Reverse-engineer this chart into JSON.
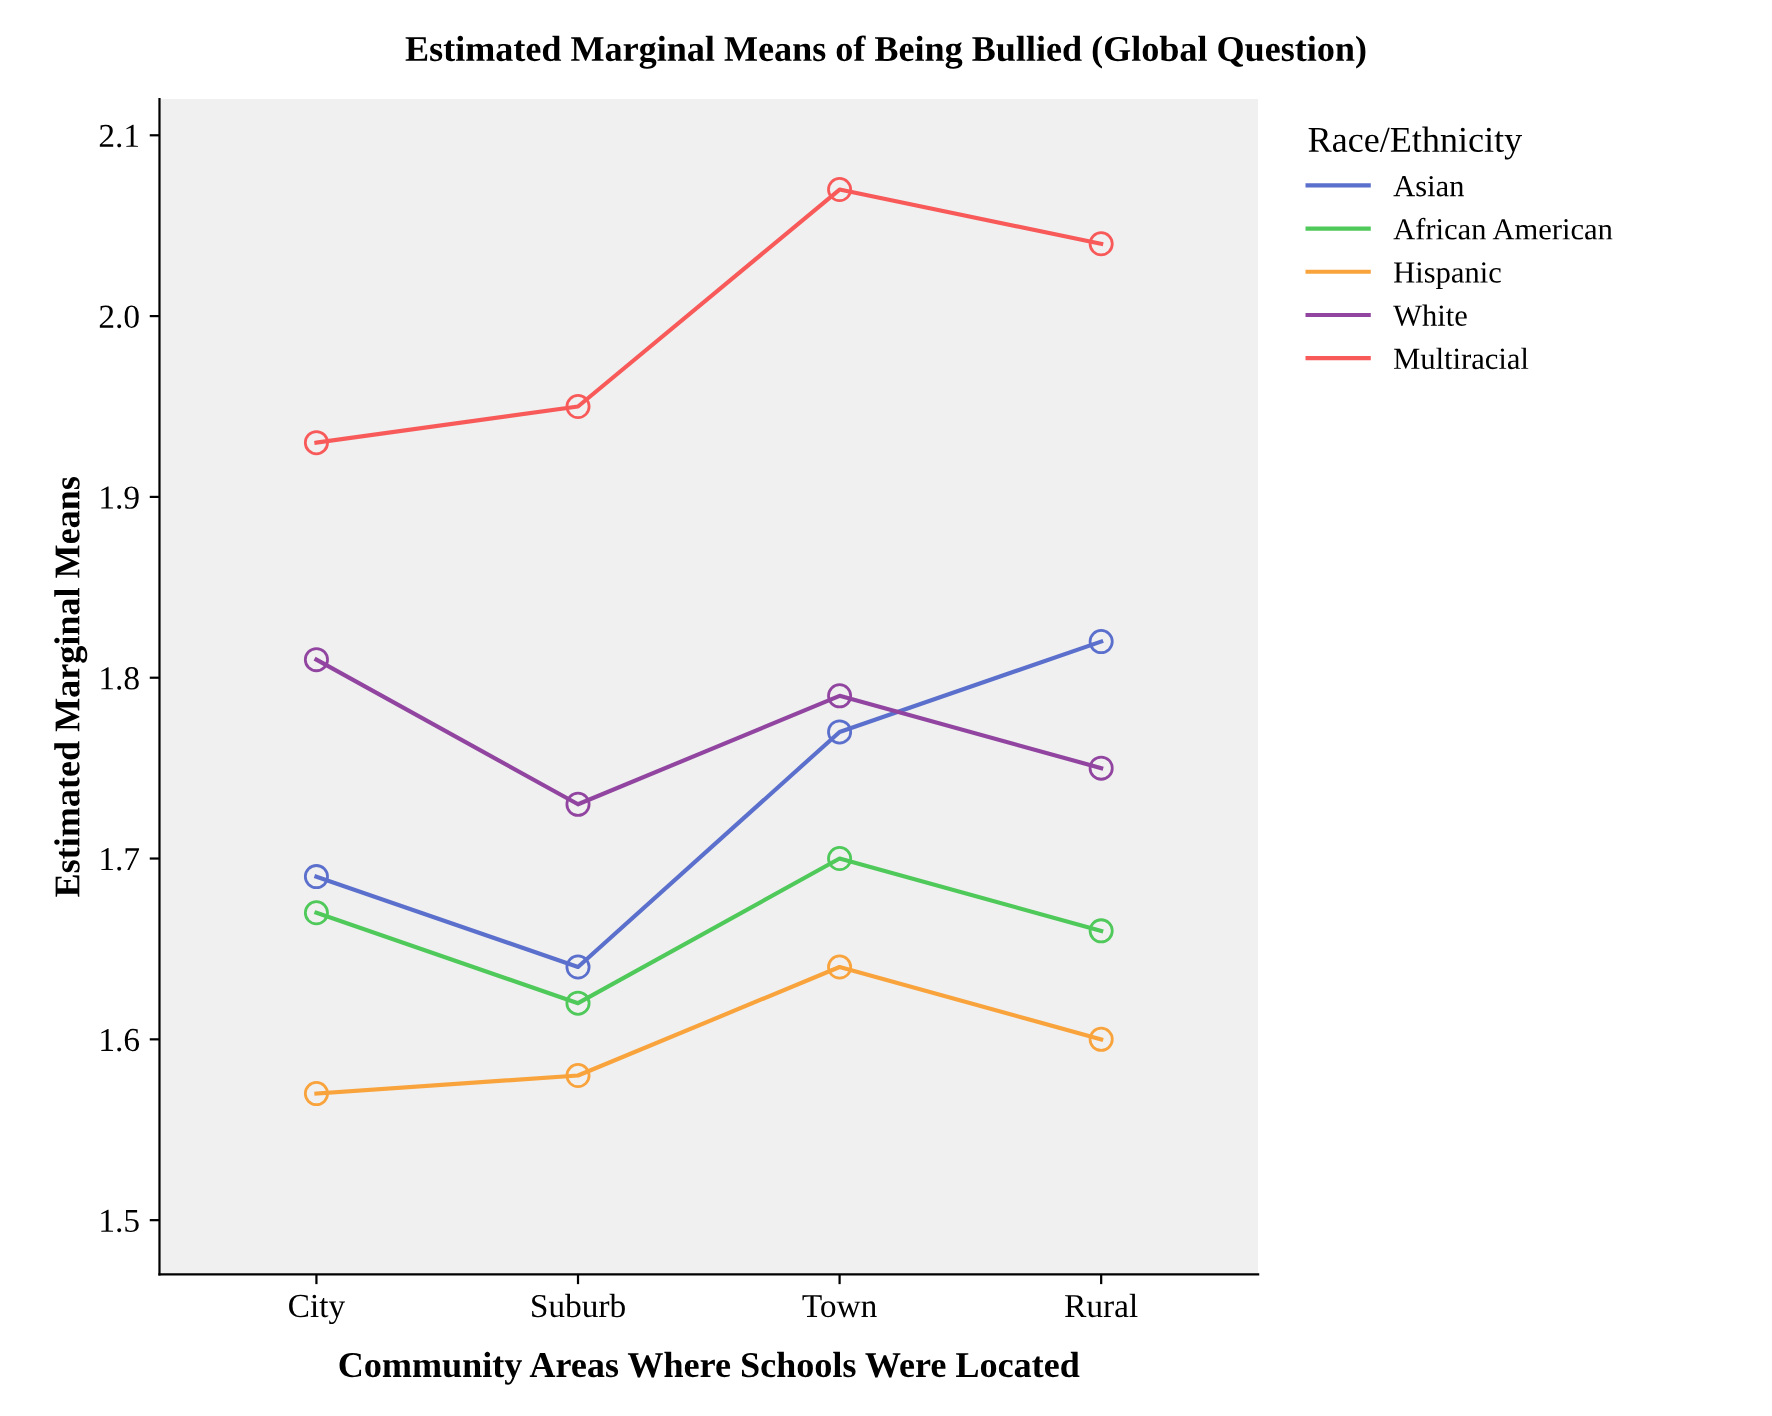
{
  "chart_data": {
    "type": "line",
    "title": "Estimated Marginal Means of Being Bullied (Global Question)",
    "xlabel": "Community Areas Where Schools Were Located",
    "ylabel": "Estimated Marginal Means",
    "legend_title": "Race/Ethnicity",
    "categories": [
      "City",
      "Suburb",
      "Town",
      "Rural"
    ],
    "series": [
      {
        "name": "Asian",
        "color": "#5b6fcc",
        "values": [
          1.69,
          1.64,
          1.77,
          1.82
        ]
      },
      {
        "name": "African American",
        "color": "#4fc95a",
        "values": [
          1.67,
          1.62,
          1.7,
          1.66
        ]
      },
      {
        "name": "Hispanic",
        "color": "#f9a33c",
        "values": [
          1.57,
          1.58,
          1.64,
          1.6
        ]
      },
      {
        "name": "White",
        "color": "#9145a0",
        "values": [
          1.81,
          1.73,
          1.79,
          1.75
        ]
      },
      {
        "name": "Multiracial",
        "color": "#f85a5a",
        "values": [
          1.93,
          1.95,
          2.07,
          2.04
        ]
      }
    ],
    "ylim": [
      1.47,
      2.12
    ],
    "yticks": [
      {
        "value": 1.5,
        "label": "1.5"
      },
      {
        "value": 1.6,
        "label": "1.6"
      },
      {
        "value": 1.7,
        "label": "1.7"
      },
      {
        "value": 1.8,
        "label": "1.8"
      },
      {
        "value": 1.9,
        "label": "1.9"
      },
      {
        "value": 2.0,
        "label": "2.0"
      },
      {
        "value": 2.1,
        "label": "2.1"
      }
    ],
    "grid": false,
    "legend": "top right",
    "marker": "circle",
    "line_style": "solid"
  }
}
